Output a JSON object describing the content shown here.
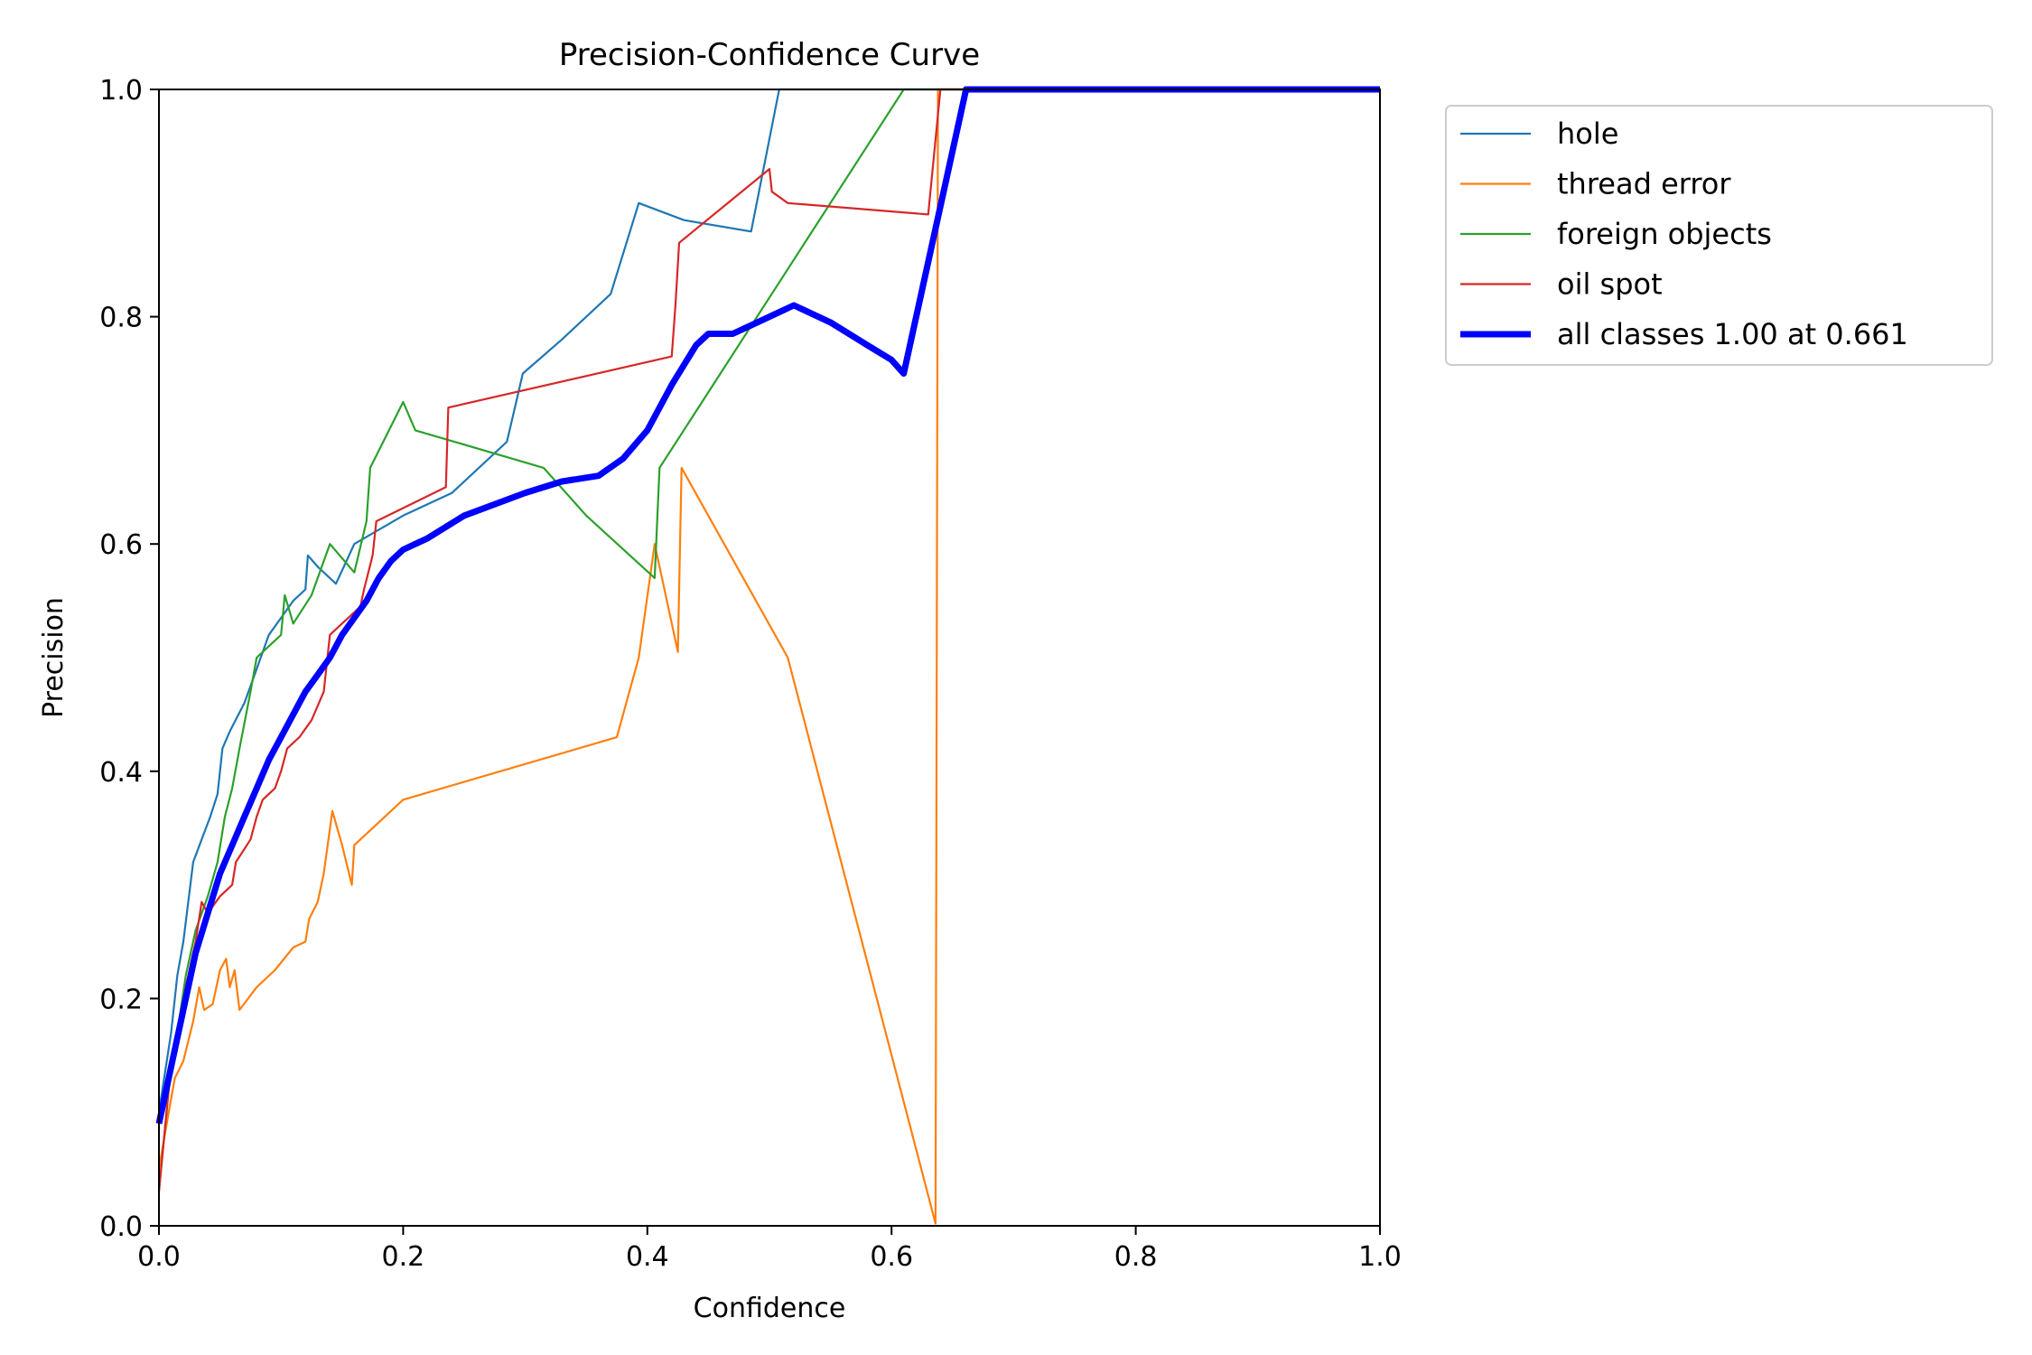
{
  "chart_data": {
    "type": "line",
    "title": "Precision-Confidence Curve",
    "xlabel": "Confidence",
    "ylabel": "Precision",
    "xlim": [
      0,
      1
    ],
    "ylim": [
      0,
      1
    ],
    "xticks": [
      "0.0",
      "0.2",
      "0.4",
      "0.6",
      "0.8",
      "1.0"
    ],
    "yticks": [
      "0.0",
      "0.2",
      "0.4",
      "0.6",
      "0.8",
      "1.0"
    ],
    "grid": false,
    "legend_position": "outside-top-right",
    "series": [
      {
        "name": "hole",
        "color": "#1f77b4",
        "points": [
          [
            0.0,
            0.1
          ],
          [
            0.01,
            0.17
          ],
          [
            0.015,
            0.22
          ],
          [
            0.02,
            0.25
          ],
          [
            0.028,
            0.32
          ],
          [
            0.035,
            0.34
          ],
          [
            0.042,
            0.36
          ],
          [
            0.048,
            0.38
          ],
          [
            0.052,
            0.42
          ],
          [
            0.058,
            0.435
          ],
          [
            0.07,
            0.46
          ],
          [
            0.08,
            0.49
          ],
          [
            0.09,
            0.52
          ],
          [
            0.1,
            0.535
          ],
          [
            0.11,
            0.55
          ],
          [
            0.12,
            0.56
          ],
          [
            0.122,
            0.59
          ],
          [
            0.13,
            0.58
          ],
          [
            0.145,
            0.565
          ],
          [
            0.16,
            0.6
          ],
          [
            0.2,
            0.625
          ],
          [
            0.24,
            0.645
          ],
          [
            0.285,
            0.69
          ],
          [
            0.298,
            0.75
          ],
          [
            0.33,
            0.78
          ],
          [
            0.37,
            0.82
          ],
          [
            0.393,
            0.9
          ],
          [
            0.43,
            0.885
          ],
          [
            0.485,
            0.875
          ],
          [
            0.508,
            1.0
          ],
          [
            1.0,
            1.0
          ]
        ]
      },
      {
        "name": "thread error",
        "color": "#ff7f0e",
        "points": [
          [
            0.0,
            0.05
          ],
          [
            0.008,
            0.1
          ],
          [
            0.013,
            0.13
          ],
          [
            0.02,
            0.145
          ],
          [
            0.028,
            0.18
          ],
          [
            0.033,
            0.21
          ],
          [
            0.037,
            0.19
          ],
          [
            0.044,
            0.195
          ],
          [
            0.05,
            0.225
          ],
          [
            0.055,
            0.235
          ],
          [
            0.058,
            0.21
          ],
          [
            0.062,
            0.225
          ],
          [
            0.066,
            0.19
          ],
          [
            0.08,
            0.21
          ],
          [
            0.095,
            0.225
          ],
          [
            0.11,
            0.245
          ],
          [
            0.12,
            0.25
          ],
          [
            0.123,
            0.27
          ],
          [
            0.13,
            0.285
          ],
          [
            0.135,
            0.31
          ],
          [
            0.142,
            0.365
          ],
          [
            0.15,
            0.335
          ],
          [
            0.158,
            0.3
          ],
          [
            0.16,
            0.335
          ],
          [
            0.2,
            0.375
          ],
          [
            0.375,
            0.43
          ],
          [
            0.393,
            0.5
          ],
          [
            0.406,
            0.6
          ],
          [
            0.425,
            0.505
          ],
          [
            0.428,
            0.667
          ],
          [
            0.515,
            0.5
          ],
          [
            0.636,
            0.002
          ],
          [
            0.638,
            1.0
          ],
          [
            1.0,
            1.0
          ]
        ]
      },
      {
        "name": "foreign objects",
        "color": "#2ca02c",
        "points": [
          [
            0.0,
            0.03
          ],
          [
            0.008,
            0.12
          ],
          [
            0.015,
            0.17
          ],
          [
            0.022,
            0.22
          ],
          [
            0.03,
            0.26
          ],
          [
            0.04,
            0.29
          ],
          [
            0.048,
            0.32
          ],
          [
            0.054,
            0.36
          ],
          [
            0.06,
            0.385
          ],
          [
            0.066,
            0.42
          ],
          [
            0.075,
            0.47
          ],
          [
            0.08,
            0.5
          ],
          [
            0.1,
            0.52
          ],
          [
            0.103,
            0.555
          ],
          [
            0.11,
            0.53
          ],
          [
            0.125,
            0.555
          ],
          [
            0.13,
            0.57
          ],
          [
            0.14,
            0.6
          ],
          [
            0.16,
            0.575
          ],
          [
            0.17,
            0.62
          ],
          [
            0.173,
            0.667
          ],
          [
            0.2,
            0.725
          ],
          [
            0.21,
            0.7
          ],
          [
            0.315,
            0.667
          ],
          [
            0.35,
            0.625
          ],
          [
            0.406,
            0.57
          ],
          [
            0.41,
            0.667
          ],
          [
            0.61,
            1.0
          ],
          [
            1.0,
            1.0
          ]
        ]
      },
      {
        "name": "oil spot",
        "color": "#d62728",
        "points": [
          [
            0.0,
            0.03
          ],
          [
            0.008,
            0.12
          ],
          [
            0.015,
            0.17
          ],
          [
            0.022,
            0.21
          ],
          [
            0.03,
            0.25
          ],
          [
            0.035,
            0.285
          ],
          [
            0.04,
            0.275
          ],
          [
            0.05,
            0.29
          ],
          [
            0.06,
            0.3
          ],
          [
            0.063,
            0.32
          ],
          [
            0.075,
            0.34
          ],
          [
            0.08,
            0.36
          ],
          [
            0.085,
            0.375
          ],
          [
            0.095,
            0.385
          ],
          [
            0.1,
            0.4
          ],
          [
            0.105,
            0.42
          ],
          [
            0.115,
            0.43
          ],
          [
            0.125,
            0.445
          ],
          [
            0.135,
            0.47
          ],
          [
            0.14,
            0.52
          ],
          [
            0.165,
            0.545
          ],
          [
            0.168,
            0.56
          ],
          [
            0.175,
            0.59
          ],
          [
            0.178,
            0.62
          ],
          [
            0.235,
            0.65
          ],
          [
            0.237,
            0.72
          ],
          [
            0.42,
            0.765
          ],
          [
            0.423,
            0.81
          ],
          [
            0.426,
            0.865
          ],
          [
            0.5,
            0.93
          ],
          [
            0.502,
            0.91
          ],
          [
            0.515,
            0.9
          ],
          [
            0.63,
            0.89
          ],
          [
            0.64,
            1.0
          ],
          [
            1.0,
            1.0
          ]
        ]
      },
      {
        "name": "all classes 1.00 at 0.661",
        "color": "#0000ff",
        "bold": true,
        "points": [
          [
            0.0,
            0.09
          ],
          [
            0.01,
            0.14
          ],
          [
            0.02,
            0.19
          ],
          [
            0.03,
            0.24
          ],
          [
            0.04,
            0.275
          ],
          [
            0.05,
            0.31
          ],
          [
            0.06,
            0.335
          ],
          [
            0.07,
            0.36
          ],
          [
            0.08,
            0.385
          ],
          [
            0.09,
            0.41
          ],
          [
            0.1,
            0.43
          ],
          [
            0.11,
            0.45
          ],
          [
            0.12,
            0.47
          ],
          [
            0.13,
            0.485
          ],
          [
            0.14,
            0.5
          ],
          [
            0.15,
            0.52
          ],
          [
            0.16,
            0.535
          ],
          [
            0.17,
            0.55
          ],
          [
            0.18,
            0.57
          ],
          [
            0.19,
            0.585
          ],
          [
            0.2,
            0.595
          ],
          [
            0.21,
            0.6
          ],
          [
            0.22,
            0.605
          ],
          [
            0.25,
            0.625
          ],
          [
            0.3,
            0.645
          ],
          [
            0.33,
            0.655
          ],
          [
            0.36,
            0.66
          ],
          [
            0.38,
            0.675
          ],
          [
            0.4,
            0.7
          ],
          [
            0.42,
            0.74
          ],
          [
            0.44,
            0.775
          ],
          [
            0.45,
            0.785
          ],
          [
            0.47,
            0.785
          ],
          [
            0.49,
            0.795
          ],
          [
            0.51,
            0.805
          ],
          [
            0.52,
            0.81
          ],
          [
            0.53,
            0.805
          ],
          [
            0.55,
            0.795
          ],
          [
            0.58,
            0.775
          ],
          [
            0.6,
            0.762
          ],
          [
            0.61,
            0.75
          ],
          [
            0.661,
            1.0
          ],
          [
            1.0,
            1.0
          ]
        ]
      }
    ]
  }
}
